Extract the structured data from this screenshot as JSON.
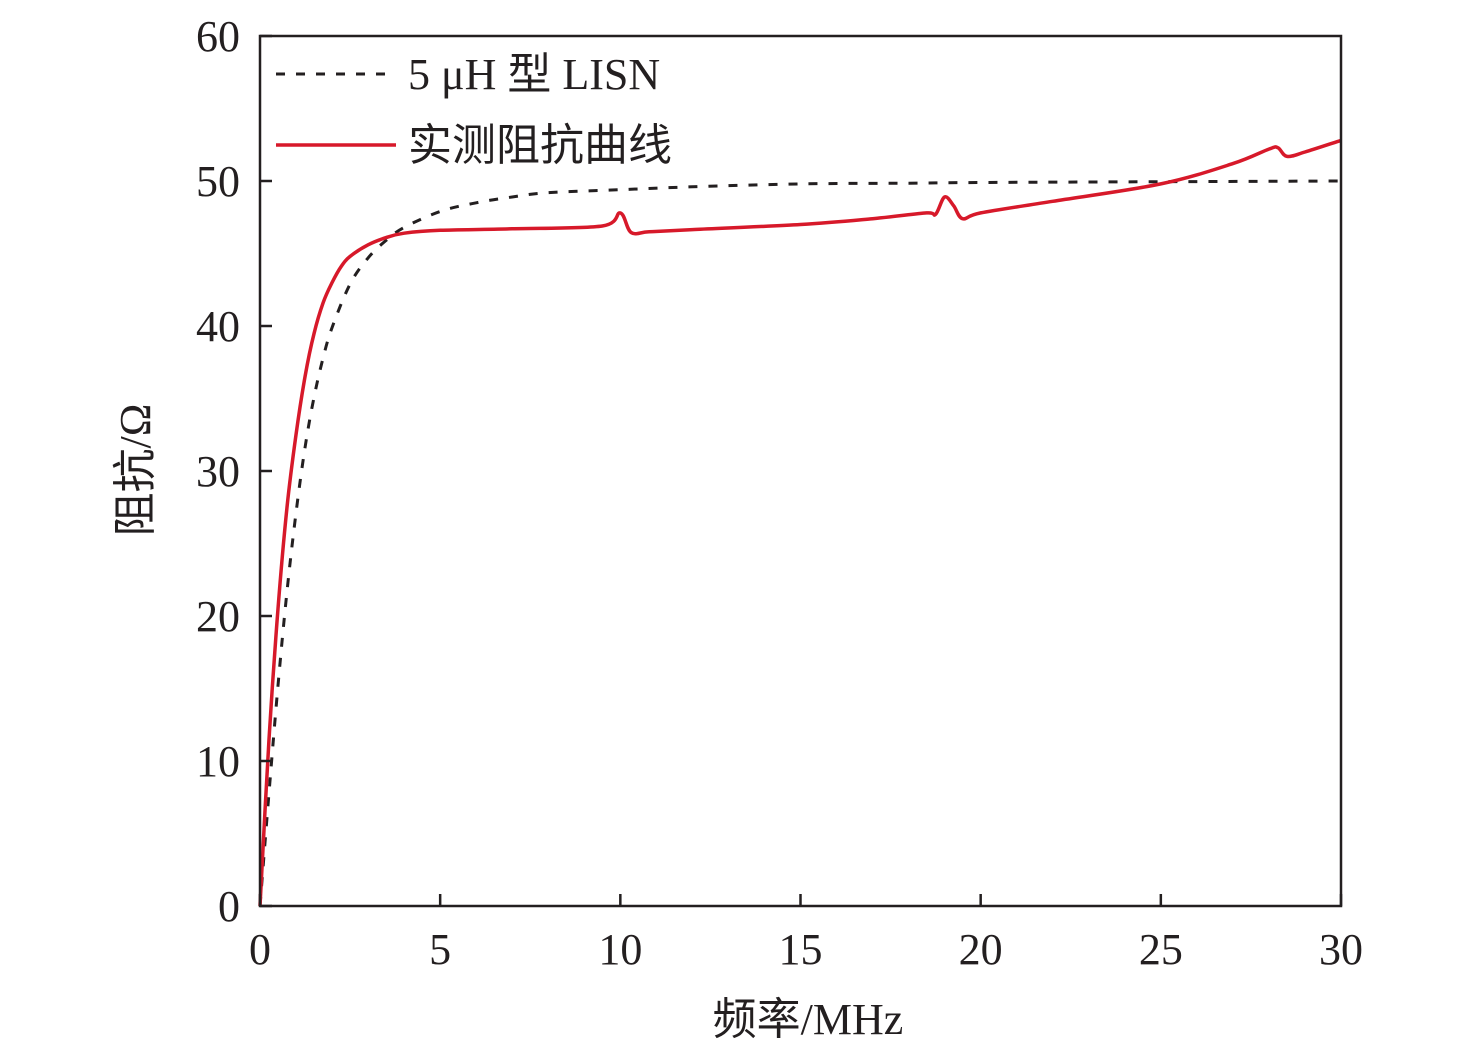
{
  "chart_data": {
    "type": "line",
    "xlabel": "频率/MHz",
    "ylabel": "阻抗/Ω",
    "xlim": [
      0,
      30
    ],
    "ylim": [
      0,
      60
    ],
    "xticks": [
      "0",
      "5",
      "10",
      "15",
      "20",
      "25",
      "30"
    ],
    "yticks": [
      "0",
      "10",
      "20",
      "30",
      "40",
      "50",
      "60"
    ],
    "grid": false,
    "legend_position": "top-left",
    "series": [
      {
        "name": "5 μH 型 LISN",
        "style": "dashed",
        "color": "#231f20",
        "x": [
          0,
          0.25,
          0.5,
          0.75,
          1.0,
          1.25,
          1.5,
          1.75,
          2.0,
          2.5,
          3.0,
          3.5,
          4.0,
          5.0,
          6.0,
          7.0,
          8.0,
          10.0,
          12.0,
          15.0,
          18.0,
          20.0,
          25.0,
          30.0
        ],
        "y": [
          0,
          7.8,
          15.2,
          21.7,
          27.1,
          31.6,
          35.1,
          37.8,
          39.9,
          42.9,
          44.7,
          45.9,
          46.8,
          47.9,
          48.5,
          48.9,
          49.2,
          49.4,
          49.6,
          49.8,
          49.85,
          49.9,
          49.95,
          50.0
        ]
      },
      {
        "name": "实测阻抗曲线",
        "style": "solid",
        "color": "#d7192a",
        "x": [
          0,
          0.25,
          0.5,
          0.75,
          1.0,
          1.25,
          1.5,
          1.75,
          2.0,
          2.25,
          2.5,
          3.0,
          3.5,
          4.0,
          5.0,
          7.0,
          9.5,
          10.0,
          10.3,
          10.8,
          12.0,
          15.0,
          17.0,
          18.5,
          18.75,
          19.0,
          19.25,
          19.5,
          20.0,
          22.0,
          25.0,
          27.0,
          28.0,
          28.25,
          28.5,
          29.0,
          30.0
        ],
        "y": [
          0,
          11.5,
          20.5,
          27.5,
          32.5,
          36.5,
          39.5,
          41.6,
          43.0,
          44.1,
          44.8,
          45.6,
          46.1,
          46.4,
          46.6,
          46.7,
          46.9,
          47.8,
          46.45,
          46.5,
          46.65,
          47.0,
          47.4,
          47.8,
          47.7,
          48.9,
          48.3,
          47.4,
          47.8,
          48.6,
          49.8,
          51.2,
          52.2,
          52.3,
          51.7,
          52.0,
          52.8
        ]
      }
    ]
  }
}
